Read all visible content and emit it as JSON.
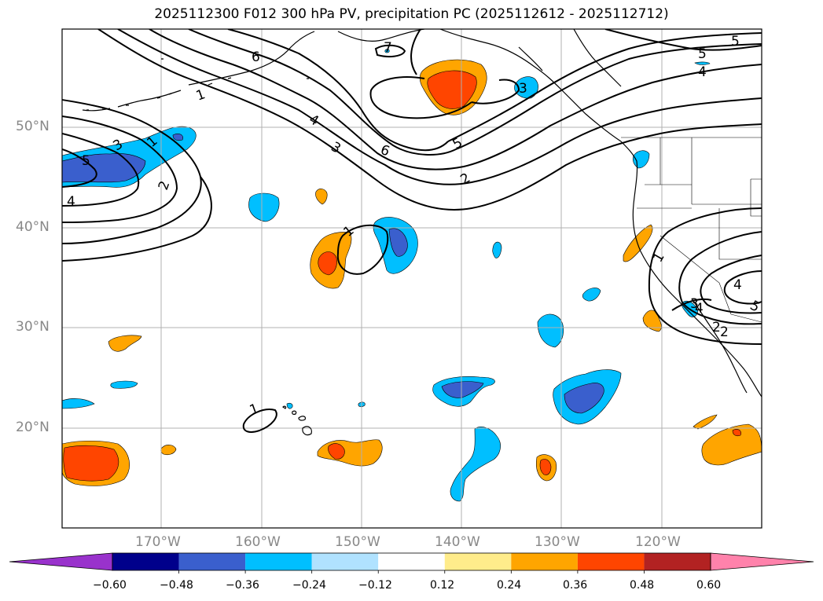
{
  "title": "2025112300 F012 300 hPa PV, precipitation PC (2025112612 - 2025112712)",
  "lat_labels": [
    "50°N",
    "40°N",
    "30°N",
    "20°N"
  ],
  "lon_labels": [
    "170°W",
    "160°W",
    "150°W",
    "140°W",
    "130°W",
    "120°W"
  ],
  "colorbar": {
    "ticks": [
      "−0.60",
      "−0.48",
      "−0.36",
      "−0.24",
      "−0.12",
      "0.12",
      "0.24",
      "0.36",
      "0.48",
      "0.60"
    ],
    "colors": [
      "#9932cc",
      "#00008b",
      "#3a5fcd",
      "#00bfff",
      "#b0e2ff",
      "#ffffff",
      "#ffec8b",
      "#ffa500",
      "#ff4500",
      "#b22222",
      "#ff82ab"
    ]
  },
  "contour_labels": [
    "1",
    "2",
    "3",
    "4",
    "5",
    "6",
    "7",
    "1",
    "2",
    "3",
    "4",
    "5",
    "6",
    "1",
    "2",
    "4",
    "5",
    "1",
    "2",
    "3",
    "4",
    "5",
    "1",
    "4",
    "5",
    "3"
  ],
  "colors": {
    "orange": "#ffa500",
    "red_orange": "#ff4500",
    "sky_blue": "#00bfff",
    "royal_blue": "#3a5fcd",
    "grid": "#b0b0b0",
    "axis_label": "#888888"
  }
}
